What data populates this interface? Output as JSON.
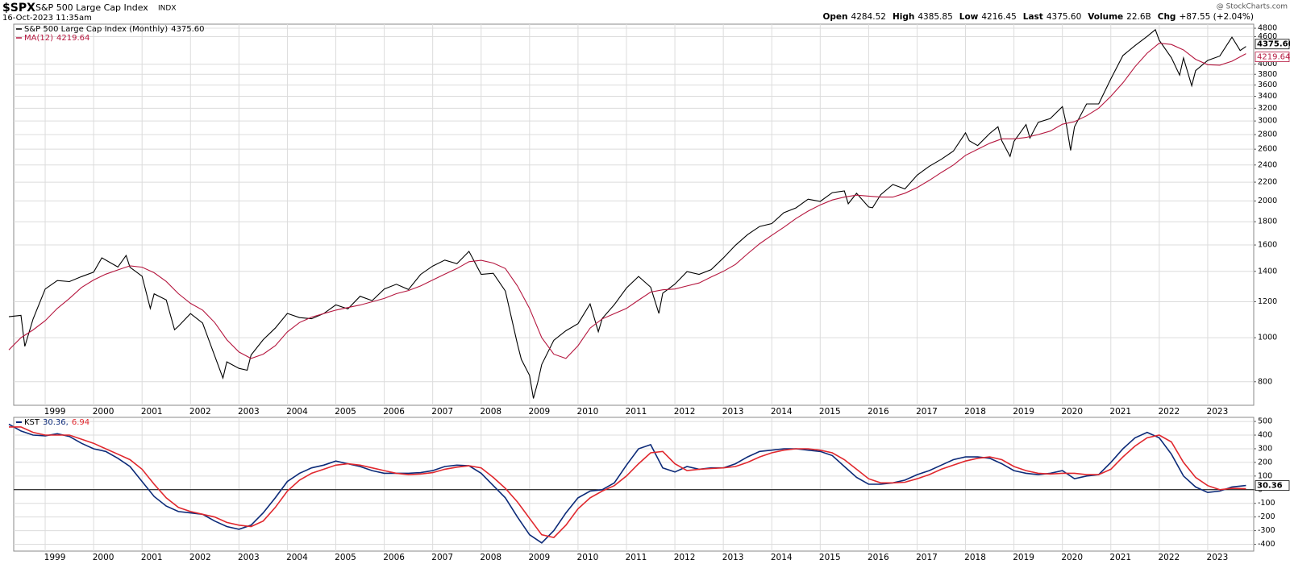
{
  "header": {
    "symbol": "$SPX",
    "name": "S&P 500 Large Cap Index",
    "exchange": "INDX",
    "timestamp": "16-Oct-2023 11:35am",
    "source": "@ StockCharts.com",
    "quote": [
      {
        "label": "Open",
        "value": "4284.52"
      },
      {
        "label": "High",
        "value": "4385.85"
      },
      {
        "label": "Low",
        "value": "4216.45"
      },
      {
        "label": "Last",
        "value": "4375.60"
      },
      {
        "label": "Volume",
        "value": "22.6B"
      },
      {
        "label": "Chg",
        "value": "+87.55 (+2.04%)"
      }
    ]
  },
  "chart_data": [
    {
      "type": "line",
      "log_scale": true,
      "grid": true,
      "xlim": [
        1998.35,
        2023.95
      ],
      "xticks": [
        1999,
        2000,
        2001,
        2002,
        2003,
        2004,
        2005,
        2006,
        2007,
        2008,
        2009,
        2010,
        2011,
        2012,
        2013,
        2014,
        2015,
        2016,
        2017,
        2018,
        2019,
        2020,
        2021,
        2022,
        2023
      ],
      "ylim": [
        710,
        4900
      ],
      "yticks": [
        800,
        1000,
        1200,
        1400,
        1600,
        1800,
        2000,
        2200,
        2400,
        2600,
        2800,
        3000,
        3200,
        3400,
        3600,
        3800,
        4000,
        4600,
        4800
      ],
      "series": [
        {
          "name": "S&P 500 Large Cap Index (Monthly)",
          "last_label": "4375.60",
          "color": "#000000",
          "x": [
            1998.25,
            1998.5,
            1998.58,
            1998.75,
            1999,
            1999.25,
            1999.5,
            1999.75,
            2000,
            2000.17,
            2000.5,
            2000.67,
            2000.75,
            2001,
            2001.17,
            2001.25,
            2001.5,
            2001.67,
            2001.75,
            2002,
            2002.25,
            2002.5,
            2002.67,
            2002.75,
            2003,
            2003.17,
            2003.25,
            2003.5,
            2003.75,
            2004,
            2004.25,
            2004.5,
            2004.75,
            2005,
            2005.25,
            2005.5,
            2005.75,
            2006,
            2006.25,
            2006.5,
            2006.75,
            2007,
            2007.25,
            2007.5,
            2007.75,
            2008,
            2008.25,
            2008.5,
            2008.75,
            2008.83,
            2009,
            2009.08,
            2009.17,
            2009.25,
            2009.5,
            2009.75,
            2010,
            2010.25,
            2010.42,
            2010.5,
            2010.75,
            2011,
            2011.25,
            2011.5,
            2011.67,
            2011.75,
            2012,
            2012.25,
            2012.5,
            2012.75,
            2013,
            2013.25,
            2013.5,
            2013.75,
            2014,
            2014.25,
            2014.5,
            2014.75,
            2015,
            2015.25,
            2015.5,
            2015.58,
            2015.75,
            2016,
            2016.08,
            2016.25,
            2016.5,
            2016.75,
            2017,
            2017.25,
            2017.5,
            2017.75,
            2018,
            2018.08,
            2018.25,
            2018.5,
            2018.67,
            2018.75,
            2018.92,
            2019,
            2019.25,
            2019.33,
            2019.5,
            2019.75,
            2020,
            2020.08,
            2020.17,
            2020.25,
            2020.5,
            2020.75,
            2021,
            2021.25,
            2021.5,
            2021.75,
            2021.92,
            2022,
            2022.25,
            2022.42,
            2022.5,
            2022.67,
            2022.75,
            2023,
            2023.25,
            2023.5,
            2023.67,
            2023.79
          ],
          "values": [
            1112,
            1120,
            957,
            1099,
            1280,
            1336,
            1329,
            1363,
            1394,
            1499,
            1431,
            1517,
            1429,
            1366,
            1160,
            1249,
            1211,
            1041,
            1060,
            1130,
            1077,
            912,
            815,
            885,
            856,
            848,
            916,
            990,
            1050,
            1131,
            1107,
            1101,
            1130,
            1181,
            1157,
            1234,
            1207,
            1280,
            1311,
            1277,
            1378,
            1438,
            1482,
            1455,
            1549,
            1379,
            1386,
            1267,
            968,
            896,
            826,
            735,
            798,
            873,
            987,
            1036,
            1074,
            1187,
            1031,
            1102,
            1183,
            1286,
            1364,
            1292,
            1131,
            1253,
            1312,
            1398,
            1379,
            1412,
            1498,
            1598,
            1686,
            1757,
            1783,
            1884,
            1931,
            2018,
            1995,
            2086,
            2104,
            1972,
            2079,
            1940,
            1932,
            2065,
            2174,
            2126,
            2279,
            2384,
            2470,
            2575,
            2824,
            2714,
            2648,
            2816,
            2914,
            2712,
            2507,
            2704,
            2946,
            2752,
            2980,
            3038,
            3226,
            2954,
            2585,
            2912,
            3271,
            3270,
            3714,
            4181,
            4395,
            4605,
            4766,
            4516,
            4132,
            3785,
            4130,
            3586,
            3872,
            4077,
            4169,
            4589,
            4288,
            4375.6
          ]
        },
        {
          "name": "MA(12)",
          "last_label": "4219.64",
          "color": "#b5173f",
          "x": [
            1998.25,
            1998.5,
            1998.75,
            1999,
            1999.25,
            1999.5,
            1999.75,
            2000,
            2000.25,
            2000.5,
            2000.75,
            2001,
            2001.25,
            2001.5,
            2001.75,
            2002,
            2002.25,
            2002.5,
            2002.75,
            2003,
            2003.25,
            2003.5,
            2003.75,
            2004,
            2004.25,
            2004.5,
            2004.75,
            2005,
            2005.25,
            2005.5,
            2005.75,
            2006,
            2006.25,
            2006.5,
            2006.75,
            2007,
            2007.25,
            2007.5,
            2007.75,
            2008,
            2008.25,
            2008.5,
            2008.75,
            2009,
            2009.25,
            2009.5,
            2009.75,
            2010,
            2010.25,
            2010.5,
            2010.75,
            2011,
            2011.25,
            2011.5,
            2011.75,
            2012,
            2012.25,
            2012.5,
            2012.75,
            2013,
            2013.25,
            2013.5,
            2013.75,
            2014,
            2014.25,
            2014.5,
            2014.75,
            2015,
            2015.25,
            2015.5,
            2015.75,
            2016,
            2016.25,
            2016.5,
            2016.75,
            2017,
            2017.25,
            2017.5,
            2017.75,
            2018,
            2018.25,
            2018.5,
            2018.75,
            2019,
            2019.25,
            2019.5,
            2019.75,
            2020,
            2020.25,
            2020.5,
            2020.75,
            2021,
            2021.25,
            2021.5,
            2021.75,
            2022,
            2022.25,
            2022.5,
            2022.75,
            2023,
            2023.25,
            2023.5,
            2023.79
          ],
          "values": [
            940,
            1000,
            1040,
            1090,
            1160,
            1220,
            1290,
            1340,
            1380,
            1410,
            1440,
            1430,
            1390,
            1330,
            1250,
            1190,
            1150,
            1080,
            990,
            930,
            900,
            920,
            960,
            1030,
            1080,
            1110,
            1130,
            1150,
            1165,
            1180,
            1200,
            1220,
            1250,
            1270,
            1300,
            1340,
            1380,
            1420,
            1470,
            1480,
            1460,
            1420,
            1300,
            1160,
            1000,
            920,
            900,
            960,
            1050,
            1100,
            1130,
            1160,
            1210,
            1260,
            1275,
            1280,
            1300,
            1320,
            1360,
            1400,
            1450,
            1530,
            1610,
            1680,
            1750,
            1830,
            1900,
            1960,
            2010,
            2040,
            2060,
            2050,
            2040,
            2040,
            2080,
            2140,
            2220,
            2310,
            2400,
            2520,
            2600,
            2680,
            2740,
            2740,
            2760,
            2800,
            2850,
            2950,
            2990,
            3080,
            3200,
            3400,
            3640,
            3950,
            4230,
            4450,
            4420,
            4300,
            4100,
            3990,
            3980,
            4060,
            4219.64
          ]
        }
      ]
    },
    {
      "type": "line",
      "log_scale": false,
      "grid": true,
      "hline": 0,
      "xlim": [
        1998.35,
        2023.95
      ],
      "xticks": [
        1999,
        2000,
        2001,
        2002,
        2003,
        2004,
        2005,
        2006,
        2007,
        2008,
        2009,
        2010,
        2011,
        2012,
        2013,
        2014,
        2015,
        2016,
        2017,
        2018,
        2019,
        2020,
        2021,
        2022,
        2023
      ],
      "ylim": [
        -450,
        530
      ],
      "yticks": [
        -400,
        -300,
        -200,
        -100,
        0,
        100,
        200,
        300,
        400,
        500
      ],
      "x": [
        1998.25,
        1998.5,
        1998.75,
        1999,
        1999.25,
        1999.5,
        1999.75,
        2000,
        2000.25,
        2000.5,
        2000.75,
        2001,
        2001.25,
        2001.5,
        2001.75,
        2002,
        2002.25,
        2002.5,
        2002.75,
        2003,
        2003.25,
        2003.5,
        2003.75,
        2004,
        2004.25,
        2004.5,
        2004.75,
        2005,
        2005.25,
        2005.5,
        2005.75,
        2006,
        2006.25,
        2006.5,
        2006.75,
        2007,
        2007.25,
        2007.5,
        2007.75,
        2008,
        2008.25,
        2008.5,
        2008.75,
        2009,
        2009.25,
        2009.5,
        2009.75,
        2010,
        2010.25,
        2010.5,
        2010.75,
        2011,
        2011.25,
        2011.5,
        2011.75,
        2012,
        2012.25,
        2012.5,
        2012.75,
        2013,
        2013.25,
        2013.5,
        2013.75,
        2014,
        2014.25,
        2014.5,
        2014.75,
        2015,
        2015.25,
        2015.5,
        2015.75,
        2016,
        2016.25,
        2016.5,
        2016.75,
        2017,
        2017.25,
        2017.5,
        2017.75,
        2018,
        2018.25,
        2018.5,
        2018.75,
        2019,
        2019.25,
        2019.5,
        2019.75,
        2020,
        2020.25,
        2020.5,
        2020.75,
        2021,
        2021.25,
        2021.5,
        2021.75,
        2022,
        2022.25,
        2022.5,
        2022.75,
        2023,
        2023.25,
        2023.5,
        2023.79
      ],
      "series": [
        {
          "name": "KST",
          "legend_value": "30.36,",
          "last_label": "30.36",
          "color": "#0c2a78",
          "values": [
            480,
            430,
            400,
            395,
            410,
            390,
            340,
            300,
            280,
            230,
            170,
            60,
            -50,
            -120,
            -160,
            -170,
            -180,
            -230,
            -270,
            -290,
            -260,
            -170,
            -60,
            60,
            120,
            160,
            180,
            210,
            190,
            170,
            140,
            120,
            120,
            120,
            125,
            140,
            170,
            180,
            175,
            120,
            30,
            -60,
            -200,
            -330,
            -390,
            -300,
            -170,
            -60,
            -10,
            0,
            50,
            180,
            300,
            330,
            160,
            130,
            170,
            150,
            160,
            160,
            190,
            240,
            280,
            290,
            300,
            300,
            290,
            280,
            250,
            170,
            90,
            40,
            40,
            50,
            70,
            110,
            140,
            180,
            220,
            240,
            240,
            230,
            190,
            140,
            120,
            110,
            120,
            140,
            80,
            100,
            110,
            200,
            300,
            380,
            420,
            380,
            260,
            100,
            20,
            -20,
            -10,
            20,
            30.36
          ]
        },
        {
          "legend_value": "6.94",
          "color": "#e0282e",
          "values": [
            460,
            460,
            420,
            400,
            400,
            400,
            370,
            340,
            300,
            260,
            220,
            150,
            40,
            -60,
            -130,
            -160,
            -180,
            -200,
            -240,
            -260,
            -270,
            -230,
            -130,
            -10,
            70,
            120,
            150,
            180,
            190,
            180,
            160,
            140,
            120,
            110,
            115,
            125,
            150,
            165,
            175,
            160,
            90,
            10,
            -90,
            -210,
            -330,
            -350,
            -260,
            -140,
            -60,
            -10,
            30,
            100,
            190,
            270,
            280,
            190,
            140,
            150,
            155,
            160,
            170,
            200,
            240,
            270,
            290,
            300,
            300,
            290,
            270,
            220,
            150,
            80,
            50,
            50,
            55,
            80,
            110,
            150,
            180,
            210,
            230,
            240,
            220,
            170,
            140,
            120,
            115,
            120,
            120,
            110,
            110,
            150,
            240,
            320,
            380,
            400,
            350,
            200,
            90,
            30,
            0,
            10,
            6.94
          ]
        }
      ]
    }
  ]
}
